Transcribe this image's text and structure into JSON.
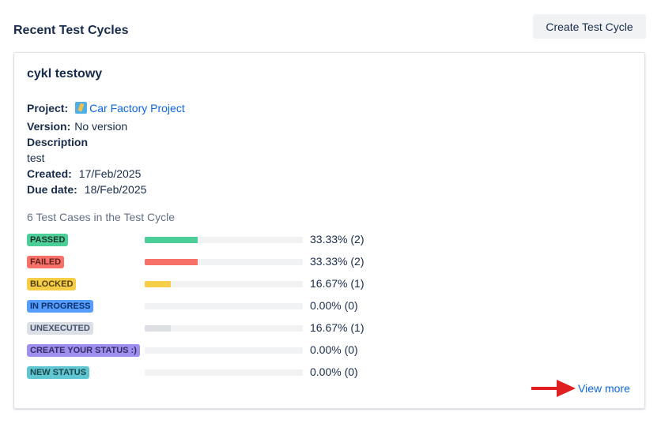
{
  "header": {
    "title": "Recent Test Cycles",
    "create_button": "Create Test Cycle"
  },
  "cycle": {
    "name": "cykl testowy",
    "project_label": "Project:",
    "project_value": "Car Factory Project",
    "version_label": "Version:",
    "version_value": "No version",
    "description_label": "Description",
    "description_value": "test",
    "created_label": "Created:",
    "created_value": "17/Feb/2025",
    "due_label": "Due date:",
    "due_value": "18/Feb/2025",
    "summary": "6 Test Cases in the Test Cycle",
    "statuses": [
      {
        "label": "PASSED",
        "percent_text": "33.33% (2)",
        "fraction": 0.3333,
        "bg": "#4bce97",
        "fg": "#1c3329",
        "bar": "#4bce97"
      },
      {
        "label": "FAILED",
        "percent_text": "33.33% (2)",
        "fraction": 0.3333,
        "bg": "#f87168",
        "fg": "#5d1f1a",
        "bar": "#f87168"
      },
      {
        "label": "BLOCKED",
        "percent_text": "16.67% (1)",
        "fraction": 0.1667,
        "bg": "#f5cd47",
        "fg": "#533f04",
        "bar": "#f5cd47"
      },
      {
        "label": "IN PROGRESS",
        "percent_text": "0.00% (0)",
        "fraction": 0,
        "bg": "#579dff",
        "fg": "#09326c",
        "bar": "#579dff"
      },
      {
        "label": "UNEXECUTED",
        "percent_text": "16.67% (1)",
        "fraction": 0.1667,
        "bg": "#dcdfe4",
        "fg": "#44546f",
        "bar": "#dcdfe4"
      },
      {
        "label": "CREATE YOUR STATUS :)",
        "percent_text": "0.00% (0)",
        "fraction": 0,
        "bg": "#9f8fef",
        "fg": "#352c63",
        "bar": "#9f8fef"
      },
      {
        "label": "NEW STATUS",
        "percent_text": "0.00% (0)",
        "fraction": 0,
        "bg": "#60c6d2",
        "fg": "#1d474c",
        "bar": "#60c6d2"
      }
    ],
    "view_more": "View more"
  },
  "icons": {
    "project": "project-icon",
    "arrow": "red-arrow-icon"
  }
}
